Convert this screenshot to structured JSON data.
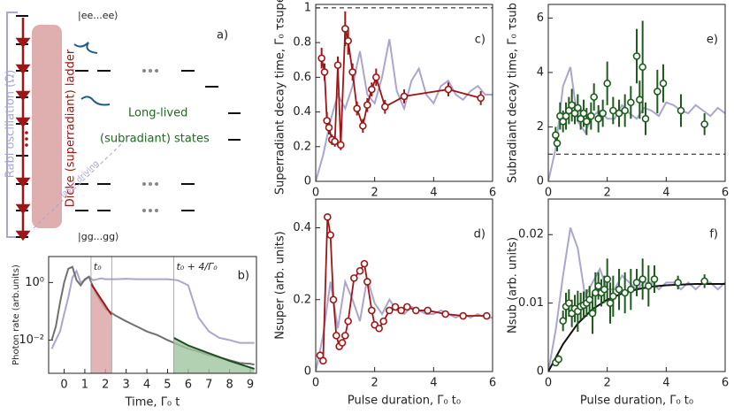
{
  "diagram": {
    "top_state": "|ee...ee⟩",
    "bottom_state": "|gg...gg⟩",
    "panel_label": "a)",
    "rabi": "Rabi oscillation (Ω)",
    "ladder": "Dicke (superradiant) ladder",
    "long_lived": "Long-lived",
    "subradiant": "(subradiant) states",
    "laser": "laser driving"
  },
  "chart_data": [
    {
      "type": "line",
      "panel_label": "b)",
      "xlabel": "Time, Γ₀ t",
      "ylabel": "Photon rate (arb.units)",
      "yscale": "log",
      "xlim": [
        -0.75,
        9.3
      ],
      "ylim": [
        0.0007,
        8
      ],
      "xticks": [
        0,
        1,
        2,
        3,
        4,
        5,
        6,
        7,
        8,
        9
      ],
      "yticks": [
        {
          "value": 1,
          "label": "10⁰"
        },
        {
          "value": 0.01,
          "label": "10⁻²"
        }
      ],
      "vlines": [
        {
          "value": 1.3,
          "label": "t₀"
        },
        {
          "value": 2.3
        },
        {
          "value": 5.3,
          "label": "t₀ + 4/Γ₀"
        }
      ],
      "series": [
        {
          "color": "#a9a6cf",
          "x": [
            -0.6,
            -0.4,
            -0.2,
            0,
            0.2,
            0.4,
            0.6,
            0.8,
            1.0,
            1.2,
            1.4,
            1.6,
            1.8,
            2.0,
            2.5,
            3,
            3.5,
            4,
            4.5,
            5,
            5.5,
            6,
            6.5,
            7,
            7.5,
            8,
            8.5,
            9,
            9.2
          ],
          "values": [
            0.005,
            0.01,
            0.02,
            0.08,
            0.3,
            1.5,
            2.5,
            1.0,
            1.2,
            1.6,
            1.2,
            1.3,
            1.4,
            1.3,
            1.3,
            1.35,
            1.3,
            1.3,
            1.3,
            1.3,
            1.2,
            0.8,
            0.06,
            0.02,
            0.012,
            0.01,
            0.008,
            0.008,
            0.008
          ],
          "line": true
        },
        {
          "color": "#707070",
          "x": [
            -0.6,
            -0.4,
            -0.2,
            0,
            0.2,
            0.4,
            0.6,
            0.8,
            1.0,
            1.2,
            1.4,
            1.6,
            1.8,
            2.0,
            2.5,
            3,
            3.5,
            4,
            4.5,
            5,
            5.5,
            6,
            6.5,
            7,
            7.5,
            8,
            8.5,
            9,
            9.2
          ],
          "values": [
            0.01,
            0.03,
            0.2,
            1,
            3,
            3.5,
            1.2,
            0.8,
            1.3,
            1.6,
            0.7,
            0.35,
            0.2,
            0.12,
            0.07,
            0.045,
            0.03,
            0.02,
            0.015,
            0.01,
            0.007,
            0.005,
            0.004,
            0.003,
            0.0025,
            0.002,
            0.0016,
            0.0015,
            0.0014
          ],
          "line": true
        },
        {
          "color": "#a01515",
          "fill": "#d9a3a3",
          "x": [
            1.3,
            1.5,
            1.7,
            1.9,
            2.1,
            2.3
          ],
          "values": [
            0.9,
            0.55,
            0.33,
            0.2,
            0.12,
            0.075
          ],
          "line": true
        },
        {
          "color": "#1e4d1e",
          "fill": "#9fc49f",
          "x": [
            5.3,
            6,
            7,
            8,
            9.2
          ],
          "values": [
            0.012,
            0.0065,
            0.0035,
            0.0019,
            0.001
          ],
          "line": true
        }
      ]
    },
    {
      "type": "line",
      "panel_label": "c)",
      "ylabel": "Superradiant decay time, Γ₀ τsuper",
      "xlim": [
        0,
        6
      ],
      "ylim": [
        0,
        1.02
      ],
      "xticks": [
        0,
        2,
        4,
        6
      ],
      "yticks": [
        0,
        0.2,
        0.4,
        0.6,
        0.8,
        1
      ],
      "hlines": [
        1
      ],
      "series": [
        {
          "color": "#a9a6cf",
          "x": [
            0,
            0.25,
            0.5,
            0.75,
            1,
            1.25,
            1.5,
            1.75,
            2,
            2.25,
            2.5,
            2.75,
            3,
            3.25,
            3.5,
            3.75,
            4,
            4.25,
            4.5,
            4.75,
            5,
            5.25,
            5.5,
            5.75,
            6
          ],
          "values": [
            0,
            0.15,
            0.35,
            0.5,
            0.42,
            0.55,
            0.75,
            0.5,
            0.45,
            0.6,
            0.82,
            0.52,
            0.42,
            0.58,
            0.65,
            0.5,
            0.45,
            0.55,
            0.58,
            0.5,
            0.47,
            0.52,
            0.55,
            0.5,
            0.5
          ],
          "line": true
        },
        {
          "color": "#a01515",
          "x": [
            0.2,
            0.3,
            0.38,
            0.45,
            0.55,
            0.65,
            0.75,
            0.85,
            1.0,
            1.1,
            1.25,
            1.4,
            1.6,
            1.75,
            1.9,
            2.05,
            2.35,
            3.0,
            4.5,
            5.6
          ],
          "values": [
            0.71,
            0.63,
            0.35,
            0.31,
            0.24,
            0.23,
            0.67,
            0.21,
            0.88,
            0.81,
            0.63,
            0.42,
            0.32,
            0.44,
            0.53,
            0.6,
            0.43,
            0.49,
            0.53,
            0.48
          ],
          "errors": [
            0.06,
            0.05,
            0.05,
            0.04,
            0.03,
            0.03,
            0.05,
            0.03,
            0.1,
            0.08,
            0.05,
            0.04,
            0.04,
            0.04,
            0.04,
            0.05,
            0.04,
            0.04,
            0.04,
            0.04
          ],
          "line": true,
          "markers": true
        }
      ]
    },
    {
      "type": "line",
      "panel_label": "d)",
      "xlabel": "Pulse duration, Γ₀ t₀",
      "ylabel": "Nsuper (arb. units)",
      "xlim": [
        0,
        6
      ],
      "ylim": [
        0,
        0.48
      ],
      "xticks": [
        0,
        2,
        4,
        6
      ],
      "yticks": [
        0,
        0.2,
        0.4
      ],
      "series": [
        {
          "color": "#a9a6cf",
          "x": [
            0,
            0.25,
            0.5,
            0.75,
            1,
            1.25,
            1.5,
            1.75,
            2,
            2.25,
            2.5,
            2.75,
            3,
            3.25,
            3.5,
            3.75,
            4,
            4.25,
            4.5,
            4.75,
            5,
            5.25,
            5.5,
            5.75,
            6
          ],
          "values": [
            0,
            0.1,
            0.25,
            0.12,
            0.25,
            0.2,
            0.14,
            0.26,
            0.19,
            0.16,
            0.2,
            0.17,
            0.16,
            0.18,
            0.17,
            0.16,
            0.16,
            0.17,
            0.16,
            0.15,
            0.16,
            0.15,
            0.16,
            0.15,
            0.15
          ],
          "line": true
        },
        {
          "color": "#a01515",
          "x": [
            0.15,
            0.25,
            0.4,
            0.5,
            0.6,
            0.7,
            0.8,
            0.9,
            1.0,
            1.1,
            1.3,
            1.5,
            1.65,
            1.75,
            1.9,
            2.0,
            2.15,
            2.3,
            2.5,
            2.7,
            2.9,
            3.1,
            3.4,
            3.8,
            4.4,
            5.0,
            5.8
          ],
          "values": [
            0.045,
            0.03,
            0.43,
            0.38,
            0.2,
            0.1,
            0.07,
            0.08,
            0.1,
            0.14,
            0.26,
            0.28,
            0.3,
            0.25,
            0.17,
            0.13,
            0.12,
            0.14,
            0.17,
            0.18,
            0.17,
            0.18,
            0.17,
            0.17,
            0.16,
            0.155,
            0.155
          ],
          "line": true,
          "markers": true
        }
      ]
    },
    {
      "type": "line",
      "panel_label": "e)",
      "ylabel": "Subradiant decay time, Γ₀ τsub",
      "xlim": [
        0,
        6
      ],
      "ylim": [
        0,
        6.5
      ],
      "xticks": [
        0,
        2,
        4,
        6
      ],
      "yticks": [
        0,
        2,
        4,
        6
      ],
      "hlines": [
        1
      ],
      "series": [
        {
          "color": "#a9a6cf",
          "x": [
            0,
            0.25,
            0.5,
            0.75,
            1,
            1.25,
            1.5,
            1.75,
            2,
            2.25,
            2.5,
            2.75,
            3,
            3.25,
            3.5,
            3.75,
            4,
            4.25,
            4.5,
            4.75,
            5,
            5.25,
            5.5,
            5.75,
            6
          ],
          "values": [
            0,
            1.2,
            3.5,
            4.2,
            2.2,
            1.8,
            2.4,
            2.6,
            2.3,
            2.3,
            2.8,
            2.5,
            2.3,
            2.7,
            2.6,
            2.4,
            2.9,
            2.8,
            2.6,
            2.5,
            2.8,
            2.6,
            2.4,
            2.7,
            2.5
          ],
          "line": true
        },
        {
          "color": "#1e5c1e",
          "x": [
            0.25,
            0.3,
            0.4,
            0.5,
            0.6,
            0.7,
            0.8,
            0.9,
            1.0,
            1.1,
            1.2,
            1.3,
            1.45,
            1.55,
            1.7,
            1.85,
            2.0,
            2.2,
            2.4,
            2.6,
            2.8,
            3.0,
            3.1,
            3.2,
            3.3,
            3.7,
            3.9,
            4.5,
            5.3
          ],
          "values": [
            1.7,
            1.4,
            2.4,
            2.2,
            2.4,
            2.6,
            2.8,
            2.5,
            2.7,
            2.3,
            2.5,
            2.2,
            2.4,
            3.1,
            2.3,
            2.5,
            3.6,
            2.6,
            2.5,
            2.6,
            2.9,
            4.6,
            3.0,
            4.2,
            2.3,
            3.3,
            3.6,
            2.6,
            2.1
          ],
          "errors": [
            0.3,
            0.3,
            0.5,
            0.4,
            0.5,
            0.5,
            0.6,
            0.4,
            0.5,
            0.4,
            0.5,
            0.5,
            0.5,
            0.5,
            0.5,
            0.5,
            0.8,
            0.5,
            0.5,
            0.6,
            0.6,
            1.0,
            0.7,
            1.7,
            0.6,
            0.8,
            0.7,
            0.6,
            0.4
          ],
          "markers": true
        }
      ]
    },
    {
      "type": "line",
      "panel_label": "f)",
      "xlabel": "Pulse duration, Γ₀ t₀",
      "ylabel": "Nsub (arb. units)",
      "xlim": [
        0,
        6
      ],
      "ylim": [
        0,
        0.0252
      ],
      "xticks": [
        0,
        2,
        4,
        6
      ],
      "yticks": [
        0,
        0.01,
        0.02
      ],
      "series": [
        {
          "color": "#a9a6cf",
          "x": [
            0,
            0.25,
            0.5,
            0.75,
            1,
            1.25,
            1.5,
            1.75,
            2,
            2.25,
            2.5,
            2.75,
            3,
            3.25,
            3.5,
            3.75,
            4,
            4.25,
            4.5,
            4.75,
            5,
            5.25,
            5.5,
            5.75,
            6
          ],
          "values": [
            0,
            0.006,
            0.014,
            0.021,
            0.018,
            0.011,
            0.013,
            0.015,
            0.012,
            0.012,
            0.014,
            0.013,
            0.012,
            0.013,
            0.013,
            0.012,
            0.013,
            0.013,
            0.012,
            0.013,
            0.012,
            0.013,
            0.013,
            0.012,
            0.013
          ],
          "line": true
        },
        {
          "color": "#111111",
          "x": [
            0,
            0.5,
            1,
            1.5,
            2,
            2.5,
            3,
            3.5,
            4,
            4.5,
            5,
            5.5,
            6
          ],
          "values": [
            0,
            0.004,
            0.007,
            0.0091,
            0.0105,
            0.0114,
            0.012,
            0.0124,
            0.0126,
            0.0127,
            0.0128,
            0.0128,
            0.0128
          ],
          "line": true
        },
        {
          "color": "#1e5c1e",
          "x": [
            0.25,
            0.35,
            0.5,
            0.6,
            0.7,
            0.8,
            0.9,
            1.0,
            1.1,
            1.2,
            1.3,
            1.4,
            1.5,
            1.6,
            1.7,
            1.8,
            1.9,
            2.0,
            2.1,
            2.2,
            2.4,
            2.6,
            2.8,
            3.0,
            3.2,
            3.4,
            3.6,
            4.4,
            5.3
          ],
          "values": [
            0.0013,
            0.0018,
            0.0074,
            0.0095,
            0.01,
            0.0085,
            0.0092,
            0.0088,
            0.0095,
            0.0097,
            0.01,
            0.0105,
            0.0085,
            0.0115,
            0.0125,
            0.0115,
            0.012,
            0.0135,
            0.01,
            0.011,
            0.012,
            0.0115,
            0.012,
            0.013,
            0.0135,
            0.0125,
            0.0135,
            0.013,
            0.0132
          ],
          "errors": [
            0.0005,
            0.0006,
            0.0015,
            0.002,
            0.002,
            0.002,
            0.002,
            0.003,
            0.002,
            0.002,
            0.002,
            0.002,
            0.003,
            0.003,
            0.002,
            0.002,
            0.002,
            0.003,
            0.003,
            0.003,
            0.003,
            0.003,
            0.003,
            0.002,
            0.003,
            0.003,
            0.002,
            0.001,
            0.001
          ],
          "markers": true
        }
      ]
    }
  ]
}
